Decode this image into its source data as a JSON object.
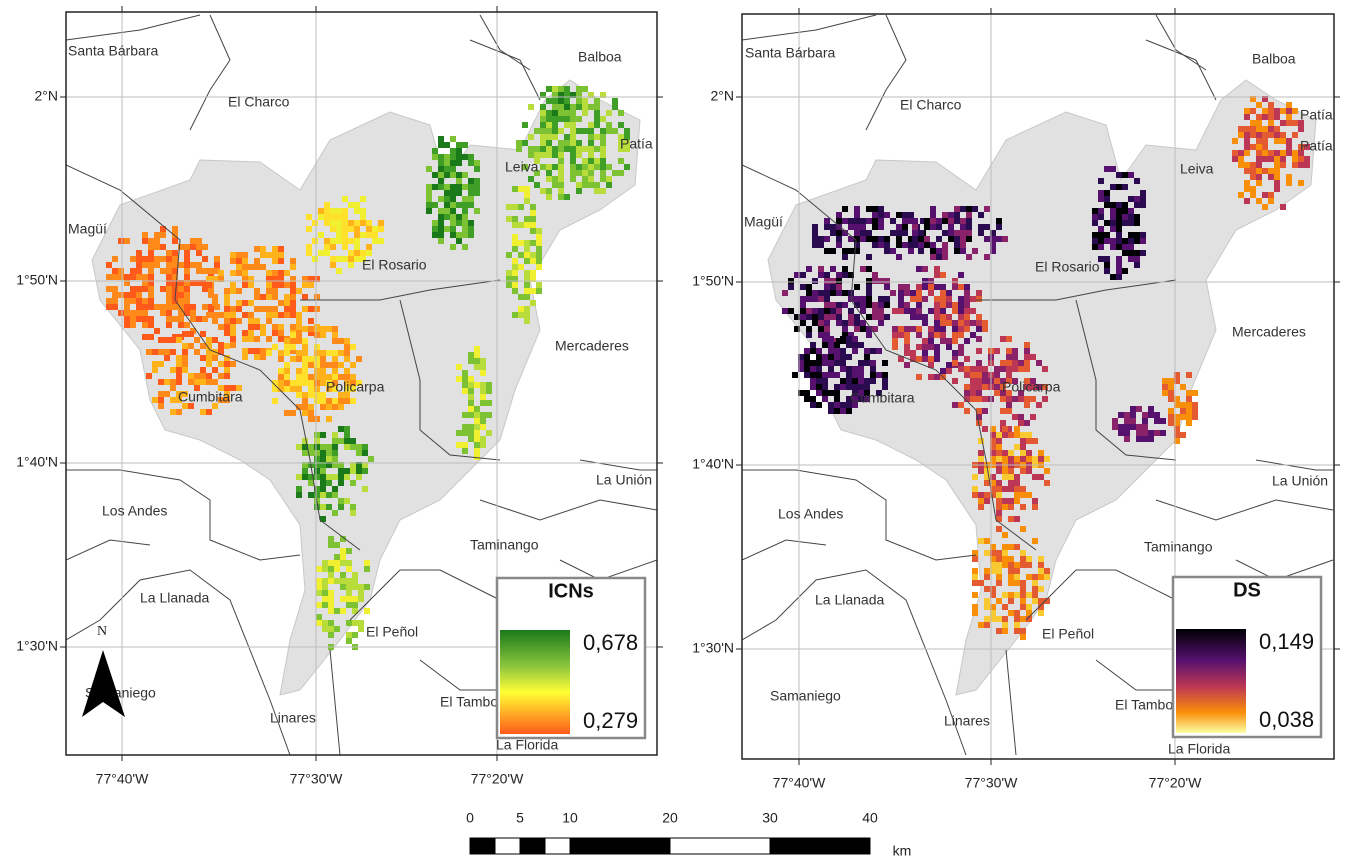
{
  "maps": [
    {
      "places": [
        "Santa Bárbara",
        "El Charco",
        "Balboa",
        "Leiva",
        "Patía",
        "Magüí",
        "El Rosario",
        "Mercaderes",
        "Policarpa",
        "Cumbitara",
        "Los Andes",
        "La Unión",
        "Taminango",
        "La Llanada",
        "El Peñol",
        "Samaniego",
        "Linares",
        "El Tambo",
        "La Florida"
      ],
      "lat_labels": [
        "2°N",
        "1°50'N",
        "1°40'N",
        "1°30'N"
      ],
      "lon_labels": [
        "77°40'W",
        "77°30'W",
        "77°20'W"
      ],
      "legend": {
        "title": "ICNs",
        "max": "0,678",
        "min": "0,279"
      }
    },
    {
      "places": [
        "Santa Bárbara",
        "El Charco",
        "Balboa",
        "Patía",
        "Patía",
        "Leiva",
        "Magüí",
        "El Rosario",
        "Mercaderes",
        "Policarpa",
        "Cumbitara",
        "Los Andes",
        "La Unión",
        "Taminango",
        "La Llanada",
        "El Peñol",
        "Samaniego",
        "Linares",
        "El Tambo",
        "La Florida"
      ],
      "lat_labels": [
        "2°N",
        "1°50'N",
        "1°40'N",
        "1°30'N"
      ],
      "lon_labels": [
        "77°40'W",
        "77°30'W",
        "77°20'W"
      ],
      "legend": {
        "title": "DS",
        "max": "0,149",
        "min": "0,038"
      }
    }
  ],
  "north": "N",
  "scale": {
    "ticks": [
      0,
      5,
      10,
      20,
      30,
      40
    ],
    "unit": "km"
  }
}
